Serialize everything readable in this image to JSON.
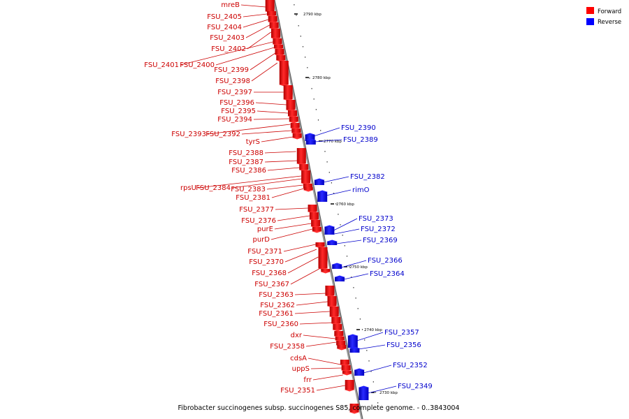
{
  "title": "Fibrobacter succinogenes subsp. succinogenes S85, complete genome. - 0..3843004",
  "legend": [
    {
      "label": "Forward",
      "color": "#ff0000"
    },
    {
      "label": "Reverse",
      "color": "#0000ff"
    }
  ],
  "ticks": [
    "2790 kbp",
    "2780 kbp",
    "2770 kbp",
    "2760 kbp",
    "2750 kbp",
    "2740 kbp",
    "2730 kbp"
  ],
  "forward_genes": [
    "mreB",
    "FSU_2405",
    "FSU_2404",
    "FSU_2403",
    "FSU_2402",
    "FSU_2401",
    "FSU_2400",
    "FSU_2399",
    "FSU_2398",
    "FSU_2397",
    "FSU_2396",
    "FSU_2395",
    "FSU_2394",
    "FSU_2393",
    "FSU_2392",
    "tyrS",
    "FSU_2388",
    "FSU_2387",
    "FSU_2386",
    "rpsU",
    "FSU_2384",
    "FSU_2383",
    "FSU_2381",
    "FSU_2377",
    "FSU_2376",
    "purE",
    "purD",
    "FSU_2371",
    "FSU_2370",
    "FSU_2368",
    "FSU_2367",
    "FSU_2363",
    "FSU_2362",
    "FSU_2361",
    "FSU_2360",
    "dxr",
    "FSU_2358",
    "cdsA",
    "uppS",
    "frr",
    "FSU_2351"
  ],
  "reverse_genes": [
    "FSU_2390",
    "FSU_2389",
    "FSU_2382",
    "rimO",
    "FSU_2373",
    "FSU_2372",
    "FSU_2369",
    "FSU_2366",
    "FSU_2364",
    "FSU_2357",
    "FSU_2356",
    "FSU_2352",
    "FSU_2349"
  ],
  "colors": {
    "forward_text": "#cc0000",
    "reverse_text": "#0000cc",
    "forward_fill": "#ff0000",
    "reverse_fill": "#0000ee",
    "backbone": "#999999"
  }
}
